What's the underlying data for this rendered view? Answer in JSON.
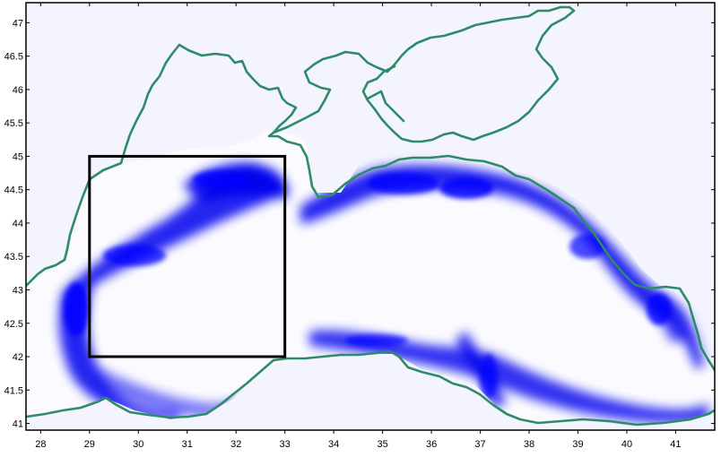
{
  "map": {
    "x_ticks": [
      "28",
      "29",
      "30",
      "31",
      "32",
      "33",
      "34",
      "35",
      "36",
      "37",
      "38",
      "39",
      "40",
      "41"
    ],
    "y_ticks": [
      "47",
      "46.5",
      "46",
      "45.5",
      "45",
      "44.5",
      "44",
      "43.5",
      "43",
      "42.5",
      "42",
      "41.5",
      "41"
    ],
    "x_range": [
      27.7,
      41.8
    ],
    "y_range": [
      40.9,
      47.3
    ],
    "study_box": {
      "lon_min": 29,
      "lon_max": 33,
      "lat_min": 42,
      "lat_max": 45
    },
    "coast_color": "#2e8b6a",
    "field_color": "#0000ee",
    "background_color": "#f3f4fd",
    "box_color": "#000000"
  }
}
